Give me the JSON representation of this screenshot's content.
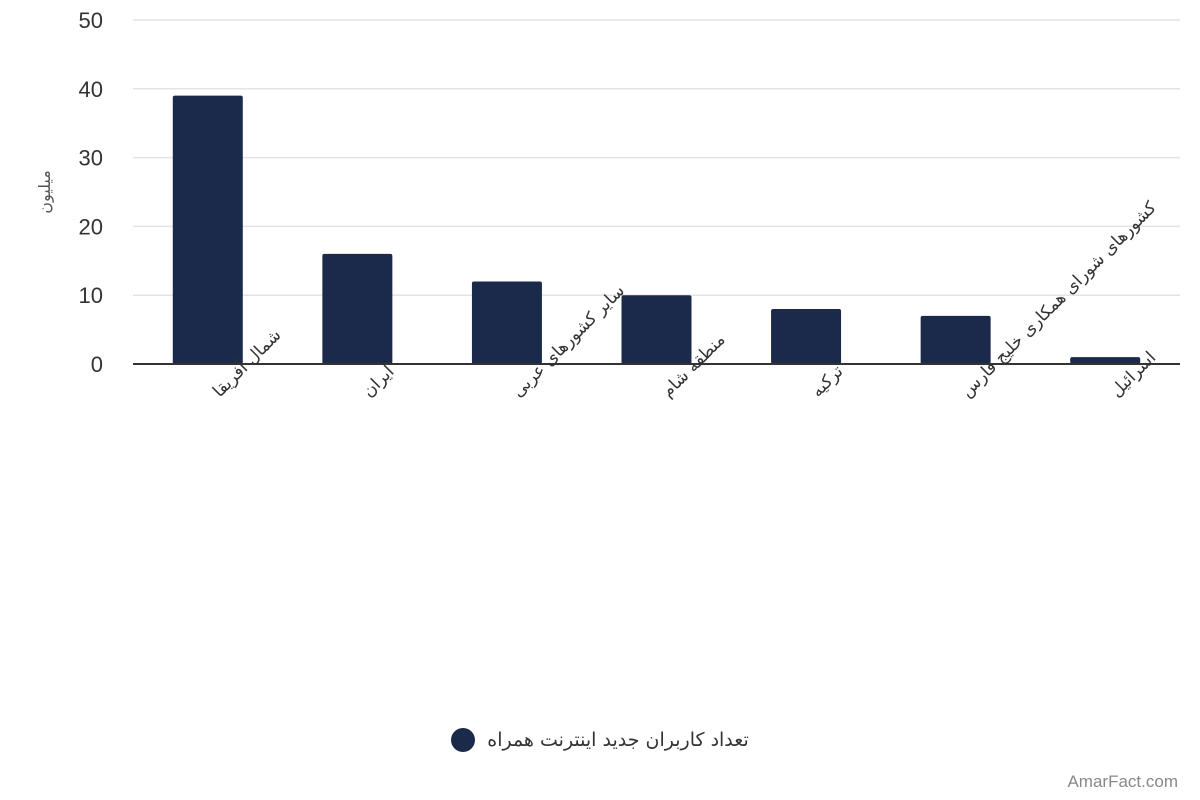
{
  "chart_data": {
    "type": "bar",
    "categories": [
      "شمال آفریقا",
      "ایران",
      "سایر کشورهای عربی",
      "منطقه شام",
      "ترکیه",
      "کشورهای شورای همکاری خلیج فارس",
      "اسرائیل"
    ],
    "series": [
      {
        "name": "تعداد کاربران جدید اینترنت همراه",
        "values": [
          39,
          16,
          12,
          10,
          8,
          7,
          1
        ]
      }
    ],
    "ylabel": "میلیون",
    "yticks": [
      0,
      10,
      20,
      30,
      40,
      50
    ],
    "ylim": [
      0,
      50
    ],
    "grid": true,
    "legend_position": "bottom-center",
    "bar_color": "#1b2a4a"
  },
  "watermark": "AmarFact.com"
}
